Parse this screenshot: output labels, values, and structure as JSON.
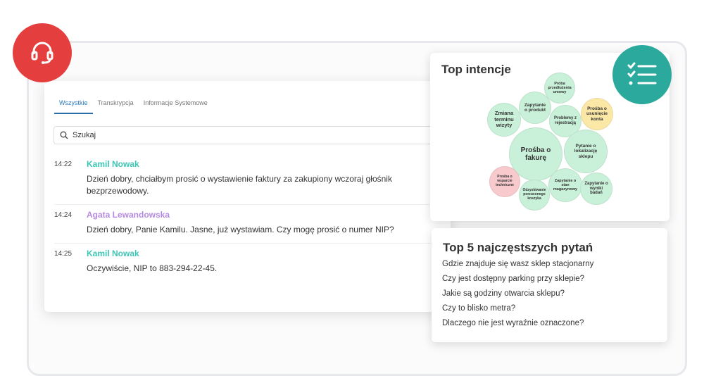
{
  "tabs": [
    "Wszystkie",
    "Transkrypcja",
    "Informacje Systemowe"
  ],
  "search": {
    "placeholder": "Szukaj"
  },
  "messages": [
    {
      "time": "14:22",
      "name": "Kamil Nowak",
      "text": "Dzień dobry, chciałbym prosić o wystawienie faktury za zakupiony wczoraj głośnik bezprzewodowy.",
      "color": "#3cc6b4"
    },
    {
      "time": "14:24",
      "name": "Agata Lewandowska",
      "text": "Dzień dobry, Panie Kamilu. Jasne, już wystawiam. Czy mogę prosić o numer NIP?",
      "color": "#b58ae0"
    },
    {
      "time": "14:25",
      "name": "Kamil Nowak",
      "text": "Oczywiście, NIP to 883-294-22-45.",
      "color": "#3cc6b4"
    }
  ],
  "intents": {
    "title": "Top intencje",
    "bubbles": [
      "Zmiana terminu wizyty",
      "Zapytanie o produkt",
      "Próba przedłużenia umowy",
      "Problemy z rejestracją",
      "Prośba o usunięcie konta",
      "Prośba o fakurę",
      "Pytanie o lokalizację sklepu",
      "Prośba o wsparcie techniczne",
      "Odzyskiwanie porzuconego koszyka",
      "Zapytanie o stan magazynowy",
      "Zapytanie o wyniki badań"
    ]
  },
  "questions": {
    "title": "Top 5 najczęstszych pytań",
    "items": [
      "Gdzie znajduje się wasz sklep stacjonarny",
      "Czy jest dostępny parking przy sklepie?",
      "Jakie są godziny otwarcia sklepu?",
      "Czy to blisko metra?",
      "Dlaczego nie jest wyraźnie oznaczone?"
    ]
  },
  "colors": {
    "green": "#c9f0d8",
    "yellow": "#fbe7a6",
    "pink": "#f8c9cd",
    "red": "#e53e3e",
    "teal": "#2ba99d"
  }
}
